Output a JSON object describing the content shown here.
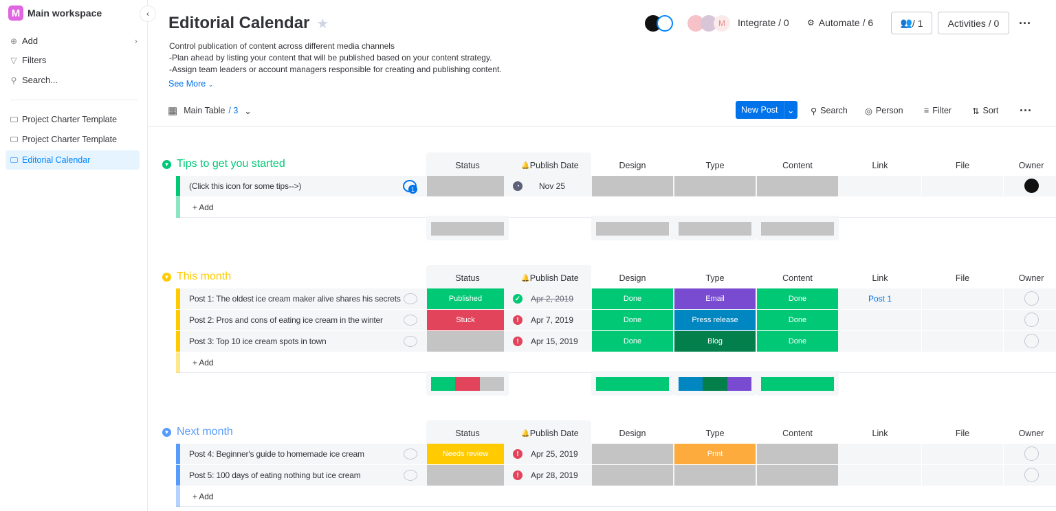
{
  "sidebar": {
    "workspace": "Main workspace",
    "workspace_initial": "M",
    "add": "Add",
    "filters": "Filters",
    "search": "Search...",
    "boards": [
      {
        "label": "Project Charter Template"
      },
      {
        "label": "Project Charter Template"
      },
      {
        "label": "Editorial Calendar",
        "active": true
      }
    ]
  },
  "header": {
    "title": "Editorial Calendar",
    "description": [
      "Control publication of content across different media channels",
      "-Plan ahead by listing your content that will be published based on your content strategy.",
      "-Assign team leaders or account managers responsible for creating and publishing content."
    ],
    "see_more": "See More",
    "integrate": "Integrate / 0",
    "automate": "Automate / 6",
    "members": "/ 1",
    "activities": "Activities / 0"
  },
  "toolbar": {
    "view": "Main Table",
    "view_count": "/ 3",
    "new_post": "New Post",
    "search": "Search",
    "person": "Person",
    "filter": "Filter",
    "sort": "Sort"
  },
  "columns": [
    "Status",
    "Publish Date",
    "Design",
    "Type",
    "Content",
    "Link",
    "File",
    "Owner"
  ],
  "add_label": "+ Add",
  "colors": {
    "done": "#00c875",
    "stuck": "#e2445c",
    "empty": "#c4c4c4",
    "email": "#784bd1",
    "press": "#0086c0",
    "blog": "#037f4c",
    "working": "#fdab3d",
    "needs": "#ffcb00",
    "green_group": "#00c875",
    "yellow_group": "#ffcb00",
    "blue_group": "#579bfc"
  },
  "groups": [
    {
      "title": "Tips to get you started",
      "color": "#00c875",
      "rows": [
        {
          "name": "(Click this icon for some tips-->)",
          "status": "",
          "status_color": "#c4c4c4",
          "date": "Nov 25",
          "date_icon": "clock",
          "design": "",
          "design_color": "#c4c4c4",
          "type": "",
          "type_color": "#c4c4c4",
          "content": "",
          "content_color": "#c4c4c4",
          "link": "",
          "owner": "filled",
          "updates": "1"
        }
      ],
      "summary": {
        "status": [
          [
            "#c4c4c4",
            1
          ]
        ],
        "design": [
          [
            "#c4c4c4",
            1
          ]
        ],
        "type": [
          [
            "#c4c4c4",
            1
          ]
        ],
        "content": [
          [
            "#c4c4c4",
            1
          ]
        ]
      }
    },
    {
      "title": "This month",
      "color": "#ffcb00",
      "rows": [
        {
          "name": "Post 1: The oldest ice cream maker alive shares his secrets",
          "status": "Published",
          "status_color": "#00c875",
          "date": "Apr 2, 2019",
          "date_icon": "check",
          "strike": true,
          "design": "Done",
          "design_color": "#00c875",
          "type": "Email",
          "type_color": "#784bd1",
          "content": "Done",
          "content_color": "#00c875",
          "link": "Post 1",
          "owner": "empty"
        },
        {
          "name": "Post 2: Pros and cons of eating ice cream in the winter",
          "status": "Stuck",
          "status_color": "#e2445c",
          "date": "Apr 7, 2019",
          "date_icon": "alert",
          "design": "Done",
          "design_color": "#00c875",
          "type": "Press release",
          "type_color": "#0086c0",
          "content": "Done",
          "content_color": "#00c875",
          "link": "",
          "owner": "empty"
        },
        {
          "name": "Post 3: Top 10 ice cream spots in town",
          "status": "",
          "status_color": "#c4c4c4",
          "date": "Apr 15, 2019",
          "date_icon": "alert",
          "design": "Done",
          "design_color": "#00c875",
          "type": "Blog",
          "type_color": "#037f4c",
          "content": "Done",
          "content_color": "#00c875",
          "link": "",
          "owner": "empty"
        }
      ],
      "summary": {
        "status": [
          [
            "#00c875",
            1
          ],
          [
            "#e2445c",
            1
          ],
          [
            "#c4c4c4",
            1
          ]
        ],
        "design": [
          [
            "#00c875",
            1
          ]
        ],
        "type": [
          [
            "#0086c0",
            1
          ],
          [
            "#037f4c",
            1
          ],
          [
            "#784bd1",
            1
          ]
        ],
        "content": [
          [
            "#00c875",
            1
          ]
        ]
      }
    },
    {
      "title": "Next month",
      "color": "#579bfc",
      "rows": [
        {
          "name": "Post 4: Beginner's guide to homemade ice cream",
          "status": "Needs review",
          "status_color": "#ffcb00",
          "date": "Apr 25, 2019",
          "date_icon": "alert",
          "design": "",
          "design_color": "#c4c4c4",
          "type": "Print",
          "type_color": "#fdab3d",
          "content": "",
          "content_color": "#c4c4c4",
          "link": "",
          "owner": "empty"
        },
        {
          "name": "Post 5: 100 days of eating nothing but ice cream",
          "status": "",
          "status_color": "#c4c4c4",
          "date": "Apr 28, 2019",
          "date_icon": "alert",
          "design": "",
          "design_color": "#c4c4c4",
          "type": "",
          "type_color": "#c4c4c4",
          "content": "",
          "content_color": "#c4c4c4",
          "link": "",
          "owner": "empty"
        }
      ]
    }
  ]
}
